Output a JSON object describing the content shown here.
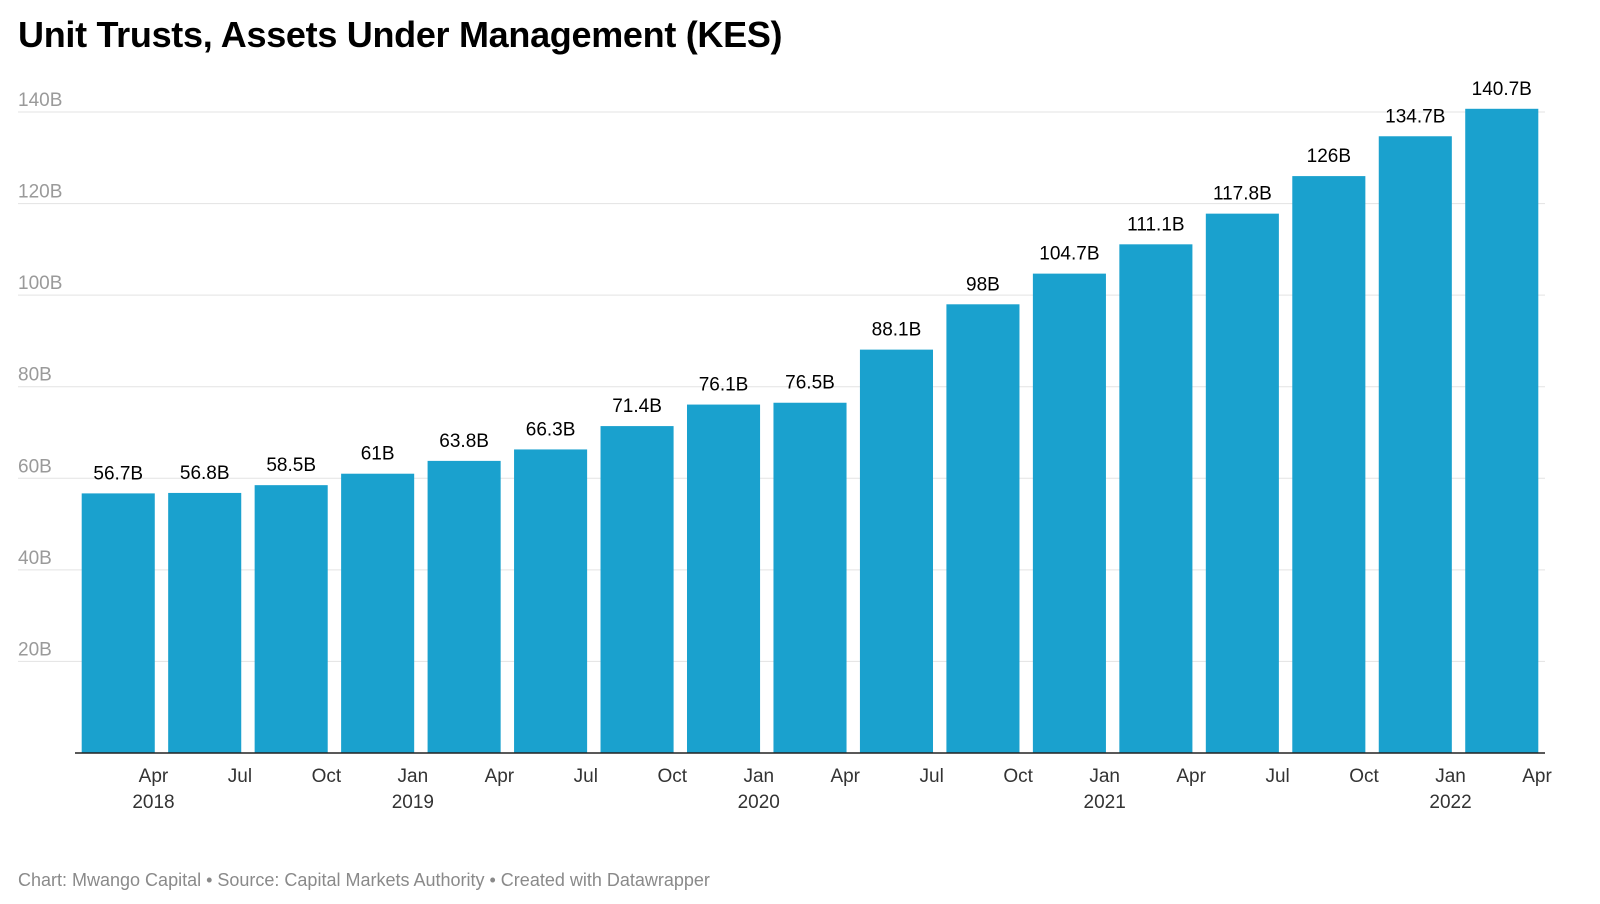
{
  "title": "Unit Trusts, Assets Under Management (KES)",
  "footer": "Chart: Mwango Capital • Source: Capital Markets Authority • Created with Datawrapper",
  "colors": {
    "bar": "#1aa1ce",
    "grid": "#e3e3e3",
    "axis": "#222222"
  },
  "chart_data": {
    "type": "bar",
    "title": "Unit Trusts, Assets Under Management (KES)",
    "categories": [
      "Apr 2018",
      "Jul 2018",
      "Oct 2018",
      "Jan 2019",
      "Apr 2019",
      "Jul 2019",
      "Oct 2019",
      "Jan 2020",
      "Apr 2020",
      "Jul 2020",
      "Oct 2020",
      "Jan 2021",
      "Apr 2021",
      "Jul 2021",
      "Oct 2021",
      "Jan 2022",
      "Apr 2022"
    ],
    "x_tick_labels": [
      "Apr",
      "Jul",
      "Oct",
      "Jan",
      "Apr",
      "Jul",
      "Oct",
      "Jan",
      "Apr",
      "Jul",
      "Oct",
      "Jan",
      "Apr",
      "Jul",
      "Oct",
      "Jan",
      "Apr"
    ],
    "year_labels": [
      {
        "index": 0,
        "label": "2018"
      },
      {
        "index": 3,
        "label": "2019"
      },
      {
        "index": 7,
        "label": "2020"
      },
      {
        "index": 11,
        "label": "2021"
      },
      {
        "index": 15,
        "label": "2022"
      }
    ],
    "values": [
      56.7,
      56.8,
      58.5,
      61,
      63.8,
      66.3,
      71.4,
      76.1,
      76.5,
      88.1,
      98,
      104.7,
      111.1,
      117.8,
      126,
      134.7,
      140.7
    ],
    "value_labels": [
      "56.7B",
      "56.8B",
      "58.5B",
      "61B",
      "63.8B",
      "66.3B",
      "71.4B",
      "76.1B",
      "76.5B",
      "88.1B",
      "98B",
      "104.7B",
      "111.1B",
      "117.8B",
      "126B",
      "134.7B",
      "140.7B"
    ],
    "y_ticks": [
      20,
      40,
      60,
      80,
      100,
      120,
      140
    ],
    "y_tick_labels": [
      "20B",
      "40B",
      "60B",
      "80B",
      "100B",
      "120B",
      "140B"
    ],
    "ylim": [
      0,
      140
    ],
    "unit": "B",
    "grid": true,
    "legend": "none"
  }
}
